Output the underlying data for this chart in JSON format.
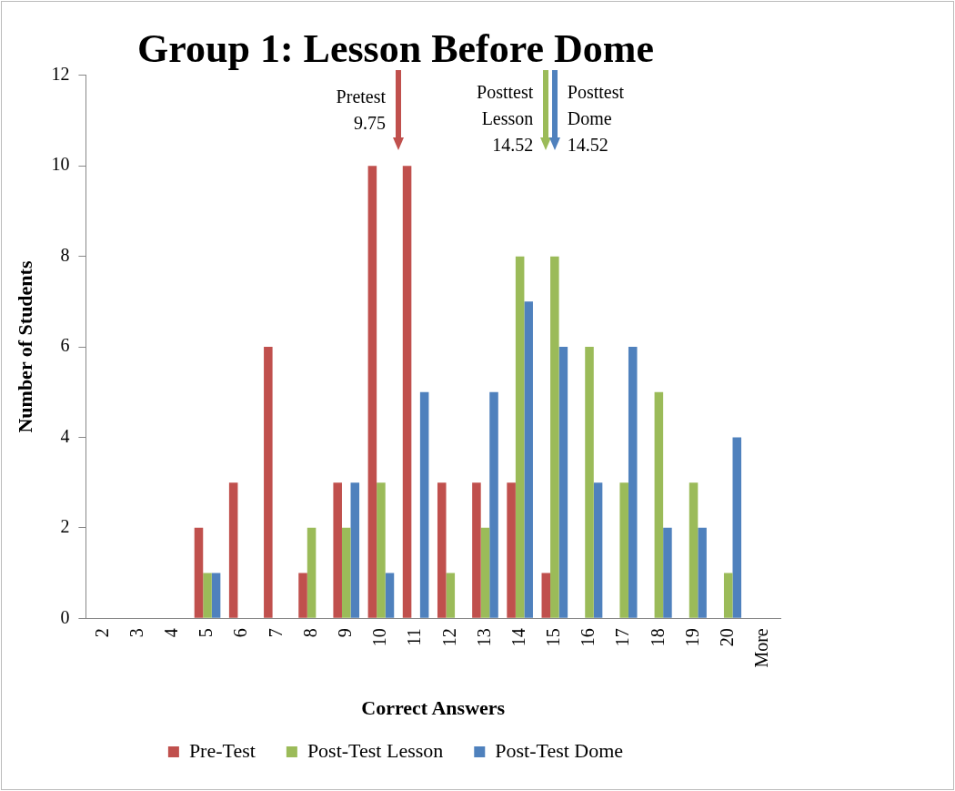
{
  "chart_data": {
    "type": "bar",
    "title": "Group 1: Lesson Before Dome",
    "xlabel": "Correct Answers",
    "ylabel": "Number of Students",
    "categories": [
      "2",
      "3",
      "4",
      "5",
      "6",
      "7",
      "8",
      "9",
      "10",
      "11",
      "12",
      "13",
      "14",
      "15",
      "16",
      "17",
      "18",
      "19",
      "20",
      "More"
    ],
    "series": [
      {
        "name": "Pre-Test",
        "color": "#c0504d",
        "values": [
          0,
          0,
          0,
          2,
          3,
          6,
          1,
          3,
          10,
          10,
          3,
          3,
          3,
          1,
          0,
          0,
          0,
          0,
          0,
          0
        ]
      },
      {
        "name": "Post-Test Lesson",
        "color": "#9bbb59",
        "values": [
          0,
          0,
          0,
          1,
          0,
          0,
          2,
          2,
          3,
          0,
          1,
          2,
          8,
          8,
          6,
          3,
          5,
          3,
          1,
          0
        ]
      },
      {
        "name": "Post-Test Dome",
        "color": "#4f81bd",
        "values": [
          0,
          0,
          0,
          1,
          0,
          0,
          0,
          3,
          1,
          5,
          0,
          5,
          7,
          6,
          3,
          6,
          2,
          2,
          4,
          0
        ]
      }
    ],
    "ylim": [
      0,
      12
    ],
    "yticks": [
      0,
      2,
      4,
      6,
      8,
      10,
      12
    ],
    "grid": false,
    "legend": "bottom",
    "annotations": [
      "Pretest\n9.75",
      "Posttest\nLesson\n14.52",
      "Posttest\nDome\n14.52"
    ]
  }
}
